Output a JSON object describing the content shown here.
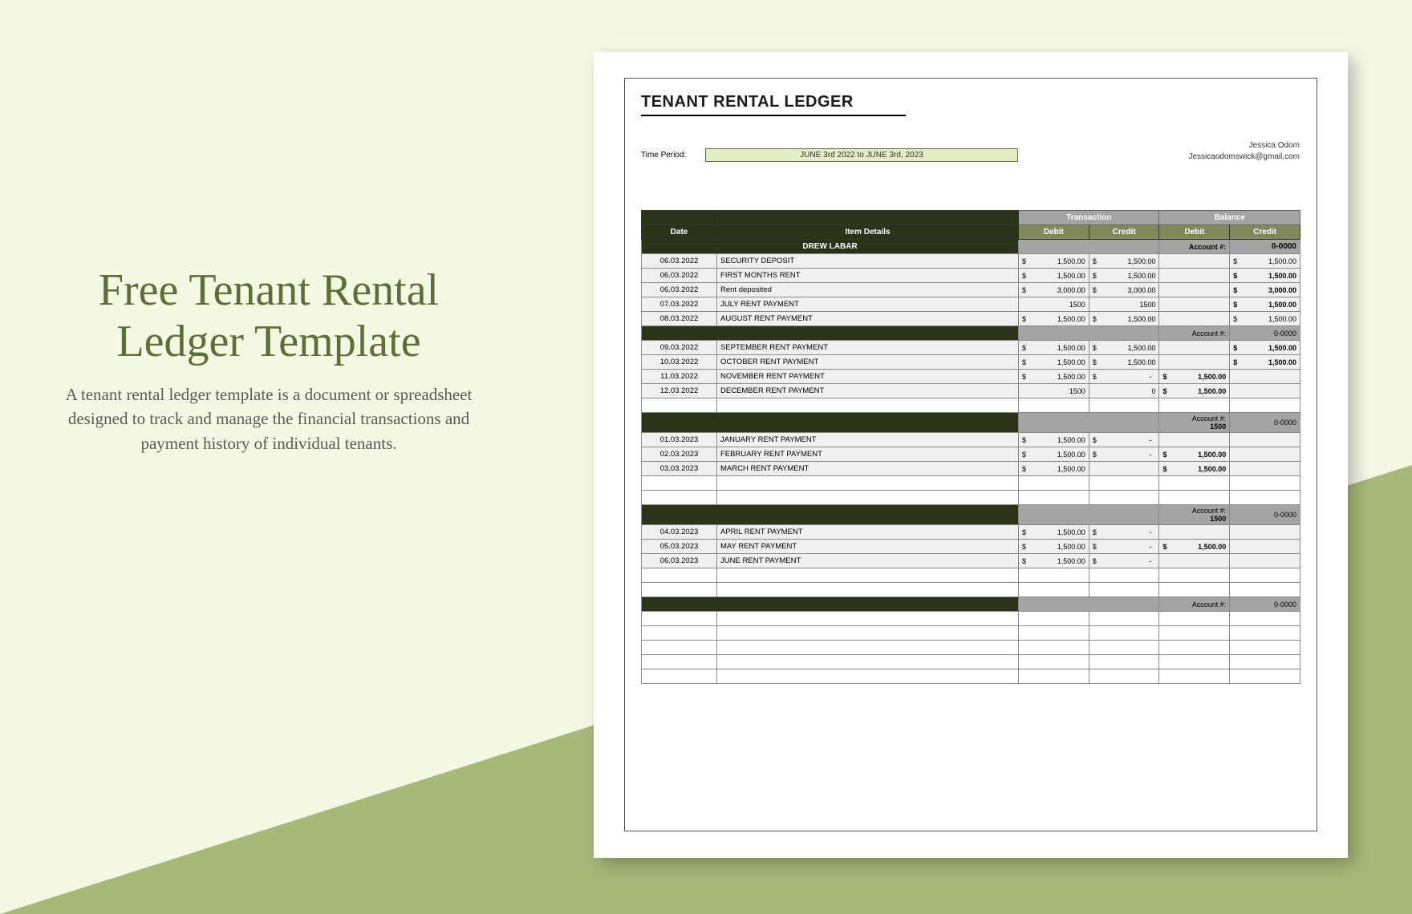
{
  "left": {
    "title": "Free Tenant Rental Ledger Template",
    "description": "A tenant rental ledger template is a document or spreadsheet designed to track and manage the financial transactions and payment history of individual tenants."
  },
  "doc": {
    "title": "TENANT RENTAL LEDGER",
    "period_label": "Time Period:",
    "period_value": "JUNE 3rd 2022 to JUNE 3rd, 2023",
    "contact_name": "Jessica Odom",
    "contact_email": "Jessicaodomswick@gmail.com"
  },
  "headers": {
    "date": "Date",
    "item": "Item Details",
    "transaction": "Transaction",
    "balance": "Balance",
    "debit": "Debit",
    "credit": "Credit",
    "account": "Account #:",
    "acct_num": "0-0000"
  },
  "tenant_name": "DREW LABAR",
  "groups": [
    {
      "rows": [
        {
          "date": "06.03.2022",
          "item": "SECURITY DEPOSIT",
          "t_debit": "1,500.00",
          "t_credit": "1,500.00",
          "b_debit": "",
          "b_credit": "1,500.00",
          "bold": false
        },
        {
          "date": "06.03.2022",
          "item": "FIRST MONTHS RENT",
          "t_debit": "1,500.00",
          "t_credit": "1,500.00",
          "b_debit": "",
          "b_credit": "1,500.00",
          "bold": true
        },
        {
          "date": "06.03.2022",
          "item": "Rent deposited",
          "t_debit": "3,000.00",
          "t_credit": "3,000.00",
          "b_debit": "",
          "b_credit": "3,000.00",
          "bold": true
        },
        {
          "date": "07.03.2022",
          "item": "JULY RENT PAYMENT",
          "t_debit": "1500",
          "t_credit": "1500",
          "b_debit": "",
          "b_credit": "1,500.00",
          "bold": true,
          "nocur": true
        },
        {
          "date": "08.03.2022",
          "item": "AUGUST RENT PAYMENT",
          "t_debit": "1,500.00",
          "t_credit": "1,500.00",
          "b_debit": "",
          "b_credit": "1,500.00",
          "bold": false
        }
      ]
    },
    {
      "rows": [
        {
          "date": "09.03.2022",
          "item": "SEPTEMBER RENT PAYMENT",
          "t_debit": "1,500.00",
          "t_credit": "1,500.00",
          "b_debit": "",
          "b_credit": "1,500.00",
          "bold": true
        },
        {
          "date": "10.03.2022",
          "item": "OCTOBER RENT PAYMENT",
          "t_debit": "1,500.00",
          "t_credit": "1,500.00",
          "b_debit": "",
          "b_credit": "1,500.00",
          "bold": true
        },
        {
          "date": "11.03.2022",
          "item": "NOVEMBER RENT PAYMENT",
          "t_debit": "1,500.00",
          "t_credit": "-",
          "b_debit": "1,500.00",
          "b_credit": "",
          "bold": true
        },
        {
          "date": "12.03.2022",
          "item": "DECEMBER RENT PAYMENT",
          "t_debit": "1500",
          "t_credit": "0",
          "b_debit": "1,500.00",
          "b_credit": "",
          "bold": true,
          "nocur": true
        }
      ],
      "blanks_after": 1
    },
    {
      "subhead_extra": "1500",
      "rows": [
        {
          "date": "01.03.2023",
          "item": "JANUARY RENT PAYMENT",
          "t_debit": "1,500.00",
          "t_credit": "-",
          "b_debit": "",
          "b_credit": "",
          "bold": false,
          "show_b_cur": false
        },
        {
          "date": "02.03.2023",
          "item": "FEBRUARY RENT PAYMENT",
          "t_debit": "1,500.00",
          "t_credit": "-",
          "b_debit": "1,500.00",
          "b_credit": "",
          "bold": true
        },
        {
          "date": "03.03.2023",
          "item": "MARCH RENT PAYMENT",
          "t_debit": "1,500.00",
          "t_credit": "",
          "b_debit": "1,500.00",
          "b_credit": "",
          "bold": true
        }
      ],
      "blanks_after": 2
    },
    {
      "subhead_extra": "1500",
      "rows": [
        {
          "date": "04.03.2023",
          "item": "APRIL RENT PAYMENT",
          "t_debit": "1,500.00",
          "t_credit": "-",
          "b_debit": "",
          "b_credit": "",
          "bold": false,
          "show_b_cur": false
        },
        {
          "date": "05.03.2023",
          "item": "MAY RENT PAYMENT",
          "t_debit": "1,500.00",
          "t_credit": "-",
          "b_debit": "1,500.00",
          "b_credit": "",
          "bold": true
        },
        {
          "date": "06.03.2023",
          "item": "JUNE RENT PAYMENT",
          "t_debit": "1,500.00",
          "t_credit": "-",
          "b_debit": "",
          "b_credit": "",
          "bold": false
        }
      ],
      "blanks_after": 2
    },
    {
      "rows": [],
      "blanks_after": 5
    }
  ]
}
